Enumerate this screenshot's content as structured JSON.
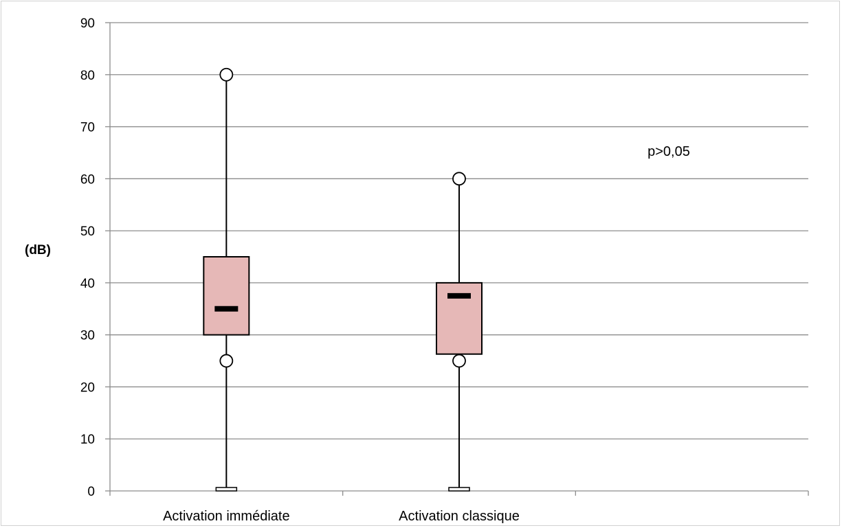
{
  "chart_data": {
    "type": "box",
    "ylabel": "(dB)",
    "xlabel": "",
    "ylim": [
      0,
      90
    ],
    "yticks": [
      0,
      10,
      20,
      30,
      40,
      50,
      60,
      70,
      80,
      90
    ],
    "grid": true,
    "categories": [
      "Activation immédiate",
      "Activation classique"
    ],
    "boxes": [
      {
        "category": "Activation immédiate",
        "min": 0,
        "q1": 30,
        "median": 35,
        "q3": 45,
        "max": 80,
        "outliers": [
          80,
          25
        ]
      },
      {
        "category": "Activation classique",
        "min": 0,
        "q1": 26.3,
        "median": 37.5,
        "q3": 40,
        "max": 60,
        "outliers": [
          60,
          25
        ]
      }
    ],
    "annotation": "p>0,05",
    "colors": {
      "box_fill": "#e6b8b7",
      "box_stroke": "#000000",
      "grid": "#8c8c8c",
      "axis": "#8c8c8c"
    }
  }
}
